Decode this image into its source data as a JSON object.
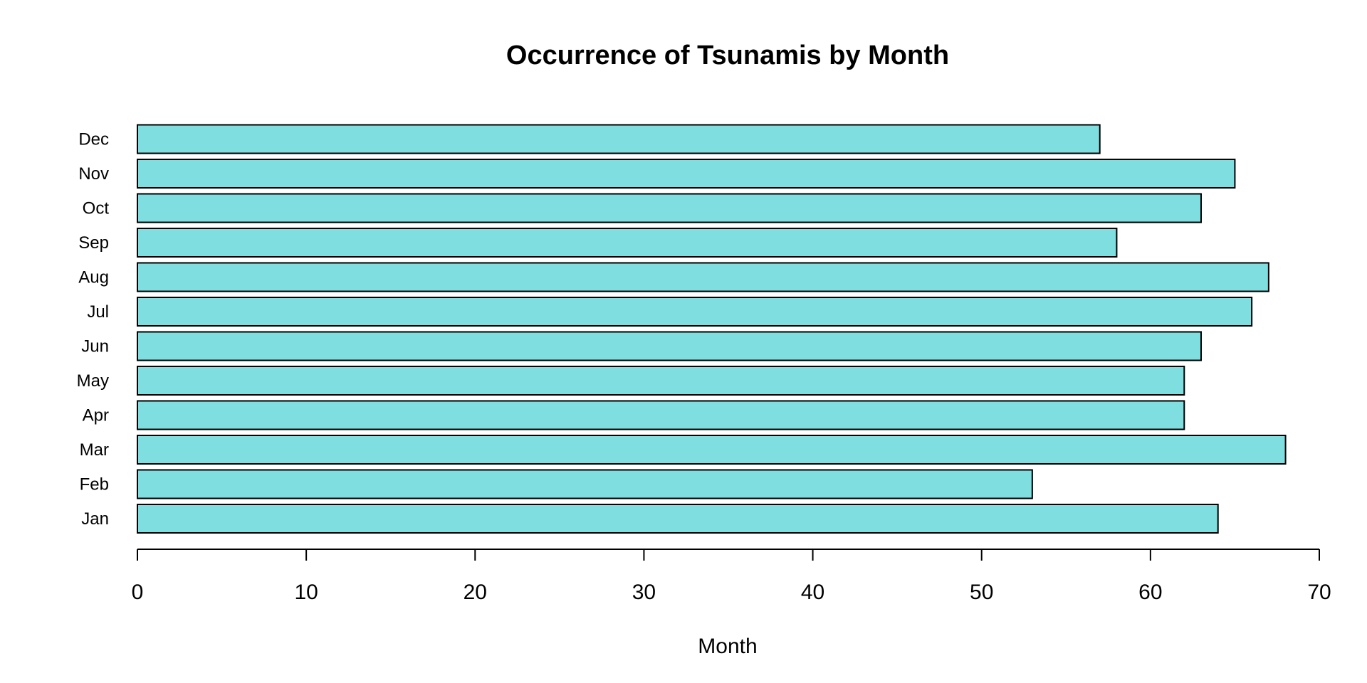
{
  "chart_data": {
    "type": "bar",
    "orientation": "horizontal",
    "title": "Occurrence of Tsunamis by Month",
    "xlabel": "Month",
    "ylabel": "",
    "categories": [
      "Jan",
      "Feb",
      "Mar",
      "Apr",
      "May",
      "Jun",
      "Jul",
      "Aug",
      "Sep",
      "Oct",
      "Nov",
      "Dec"
    ],
    "values": [
      64,
      53,
      68,
      62,
      62,
      63,
      66,
      67,
      58,
      63,
      65,
      57
    ],
    "xlim": [
      0,
      70
    ],
    "xticks": [
      0,
      10,
      20,
      30,
      40,
      50,
      60,
      70
    ],
    "grid": false,
    "legend": "none",
    "colors": {
      "bar_fill": "#7FDEDF",
      "bar_stroke": "#000000"
    }
  }
}
